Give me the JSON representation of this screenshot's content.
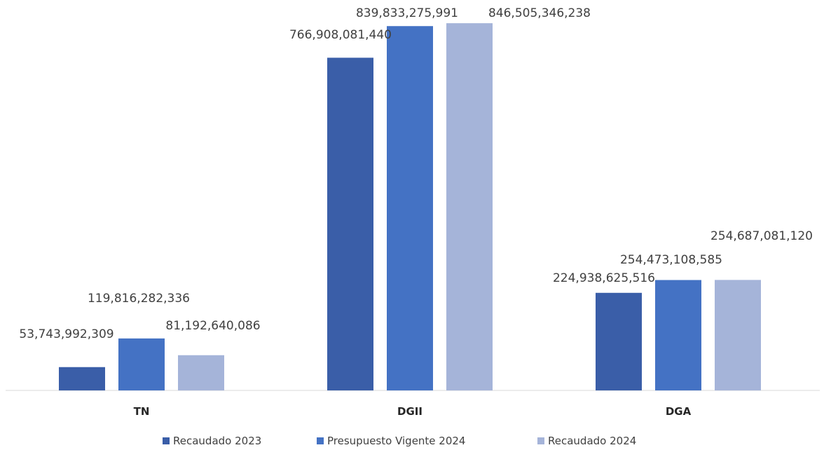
{
  "chart_data": {
    "type": "bar",
    "title": "",
    "xlabel": "",
    "ylabel": "",
    "ylim": [
      0,
      900000000000
    ],
    "grid": false,
    "legend_position": "bottom",
    "categories": [
      "TN",
      "DGII",
      "DGA"
    ],
    "series": [
      {
        "name": "Recaudado 2023",
        "color": "#3a5ea8",
        "values": [
          53743992309,
          766908081440,
          224938625516
        ],
        "labels": [
          "53,743,992,309",
          "766,908,081,440",
          "224,938,625,516"
        ]
      },
      {
        "name": "Presupuesto Vigente 2024",
        "color": "#4472c4",
        "values": [
          119816282336,
          839833275991,
          254473108585
        ],
        "labels": [
          "119,816,282,336",
          "839,833,275,991",
          "254,473,108,585"
        ]
      },
      {
        "name": "Recaudado 2024",
        "color": "#a5b4d9",
        "values": [
          81192640086,
          846505346238,
          254687081120
        ],
        "labels": [
          "81,192,640,086",
          "846,505,346,238",
          "254,687,081,120"
        ]
      }
    ]
  }
}
